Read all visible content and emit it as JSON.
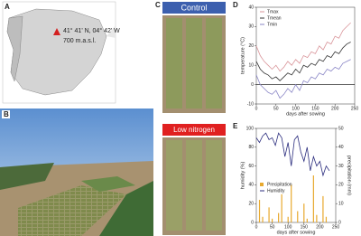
{
  "panels": {
    "a": {
      "label": "A",
      "coords": "41° 41' N, 04° 42' W",
      "altitude": "700 m.a.s.l."
    },
    "b": {
      "label": "B"
    },
    "c": {
      "label": "C",
      "control": "Control",
      "low_nitrogen": "Low nitrogen"
    }
  },
  "chart_data": [
    {
      "type": "line",
      "panel_label": "D",
      "xlabel": "days after sowing",
      "ylabel": "temperature (°C)",
      "x": [
        0,
        10,
        20,
        30,
        40,
        50,
        60,
        70,
        80,
        90,
        100,
        110,
        120,
        130,
        140,
        150,
        160,
        170,
        180,
        190,
        200,
        210,
        220,
        230,
        240
      ],
      "series": [
        {
          "name": "Tmax",
          "color": "#d9959a",
          "values": [
            20,
            15,
            12,
            10,
            8,
            10,
            7,
            9,
            12,
            10,
            13,
            11,
            15,
            14,
            17,
            16,
            20,
            18,
            22,
            21,
            25,
            24,
            28,
            30,
            32
          ]
        },
        {
          "name": "Tmean",
          "color": "#333333",
          "values": [
            12,
            8,
            6,
            5,
            3,
            4,
            2,
            4,
            6,
            5,
            8,
            6,
            10,
            9,
            11,
            10,
            13,
            12,
            15,
            14,
            17,
            16,
            19,
            21,
            22
          ]
        },
        {
          "name": "Tmin",
          "color": "#8a86c6",
          "values": [
            5,
            0,
            -2,
            -4,
            -5,
            -3,
            -7,
            -5,
            -2,
            -4,
            0,
            -3,
            2,
            1,
            4,
            3,
            6,
            5,
            8,
            7,
            9,
            8,
            11,
            12,
            13
          ]
        }
      ],
      "xlim": [
        0,
        250
      ],
      "xticks": [
        0,
        50,
        100,
        150,
        200,
        250
      ],
      "ylim": [
        -10,
        40
      ],
      "yticks": [
        -10,
        0,
        10,
        20,
        30,
        40
      ],
      "zero_line": true,
      "legend": "top-left"
    },
    {
      "type": "line",
      "panel_label": "E",
      "xlabel": "days after sowing",
      "ylabel": "humidity (%)",
      "y2label": "precipitation (mm)",
      "x": [
        0,
        10,
        20,
        30,
        40,
        50,
        60,
        70,
        80,
        90,
        100,
        110,
        120,
        130,
        140,
        150,
        160,
        170,
        180,
        190,
        200,
        210,
        220,
        230
      ],
      "series": [
        {
          "name": "Precipitation",
          "color": "#e8a92e",
          "type": "bar",
          "axis": "y2",
          "values": [
            0,
            12,
            3,
            0,
            8,
            2,
            0,
            5,
            15,
            0,
            3,
            20,
            0,
            6,
            0,
            10,
            2,
            0,
            25,
            4,
            0,
            14,
            3,
            0
          ]
        },
        {
          "name": "Humidity",
          "color": "#2b2d7e",
          "values": [
            90,
            85,
            92,
            95,
            88,
            90,
            82,
            95,
            90,
            70,
            85,
            60,
            88,
            92,
            75,
            65,
            80,
            55,
            70,
            60,
            65,
            50,
            60,
            55
          ]
        }
      ],
      "xlim": [
        0,
        250
      ],
      "xticks": [
        0,
        50,
        100,
        150,
        200,
        250
      ],
      "ylim": [
        0,
        100
      ],
      "yticks": [
        0,
        20,
        40,
        60,
        80,
        100
      ],
      "y2lim": [
        0,
        50
      ],
      "y2ticks": [
        0,
        10,
        20,
        30,
        40,
        50
      ],
      "legend": "middle-left"
    }
  ]
}
